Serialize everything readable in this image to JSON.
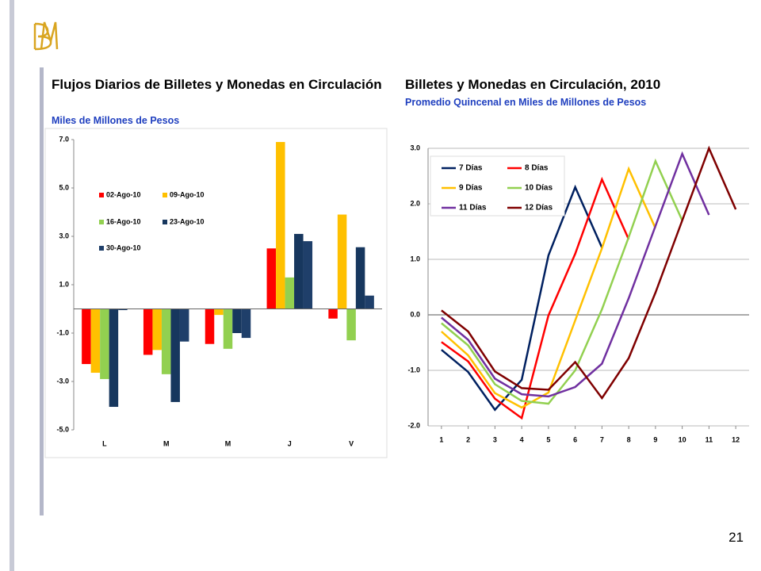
{
  "page_number": "21",
  "chart_data": [
    {
      "type": "bar",
      "title": "Flujos Diarios de Billetes y Monedas en Circulación",
      "subtitle": "Miles de Millones de Pesos",
      "categories": [
        "L",
        "M",
        "M",
        "J",
        "V"
      ],
      "series": [
        {
          "name": "02-Ago-10",
          "color": "#ff0000",
          "values": [
            -2.28,
            -1.9,
            -1.45,
            2.5,
            -0.4
          ]
        },
        {
          "name": "09-Ago-10",
          "color": "#ffc000",
          "values": [
            -2.64,
            -1.7,
            -0.25,
            6.9,
            3.9
          ]
        },
        {
          "name": "16-Ago-10",
          "color": "#92d050",
          "values": [
            -2.9,
            -2.7,
            -1.65,
            1.3,
            -1.3
          ]
        },
        {
          "name": "23-Ago-10",
          "color": "#17375e",
          "values": [
            -4.05,
            -3.85,
            -1.0,
            3.1,
            2.55
          ]
        },
        {
          "name": "30-Ago-10",
          "color": "#1f3f6a",
          "values": [
            -0.05,
            -1.35,
            -1.2,
            2.8,
            0.55
          ]
        }
      ],
      "ylim": [
        -5,
        7
      ],
      "yticks": [
        {
          "value": -5,
          "label": "-5.0"
        },
        {
          "value": -3,
          "label": "-3.0"
        },
        {
          "value": -1,
          "label": "-1.0"
        },
        {
          "value": 1,
          "label": "1.0"
        },
        {
          "value": 3,
          "label": "3.0"
        },
        {
          "value": 5,
          "label": "5.0"
        },
        {
          "value": 7,
          "label": "7.0"
        }
      ],
      "grid": false,
      "legend": "top-left"
    },
    {
      "type": "line",
      "title": "Billetes y Monedas en Circulación, 2010",
      "subtitle": "Promedio Quincenal en Miles de Millones de Pesos",
      "x": [
        1,
        2,
        3,
        4,
        5,
        6,
        7,
        8,
        9,
        10,
        11,
        12
      ],
      "series": [
        {
          "name": "7 Días",
          "color": "#002060",
          "values": [
            -0.63,
            -1.03,
            -1.71,
            -1.17,
            1.07,
            2.3,
            1.21,
            null,
            null,
            null,
            null,
            null
          ]
        },
        {
          "name": "8 Días",
          "color": "#ff0000",
          "values": [
            -0.49,
            -0.84,
            -1.51,
            -1.86,
            -0.01,
            1.1,
            2.44,
            1.36,
            null,
            null,
            null,
            null
          ]
        },
        {
          "name": "9 Días",
          "color": "#ffc000",
          "values": [
            -0.3,
            -0.73,
            -1.41,
            -1.67,
            -1.4,
            -0.1,
            1.2,
            2.63,
            1.56,
            null,
            null,
            null
          ]
        },
        {
          "name": "10 Días",
          "color": "#92d050",
          "values": [
            -0.15,
            -0.55,
            -1.25,
            -1.55,
            -1.6,
            -1.0,
            0.1,
            1.4,
            2.77,
            1.7,
            null,
            null
          ]
        },
        {
          "name": "11 Días",
          "color": "#7030a0",
          "values": [
            -0.05,
            -0.45,
            -1.15,
            -1.43,
            -1.47,
            -1.3,
            -0.88,
            0.3,
            1.6,
            2.9,
            1.8,
            null
          ]
        },
        {
          "name": "12 Días",
          "color": "#7f0000",
          "values": [
            0.08,
            -0.3,
            -1.02,
            -1.32,
            -1.35,
            -0.85,
            -1.5,
            -0.78,
            0.4,
            1.7,
            3.0,
            1.9
          ]
        }
      ],
      "xlim": [
        0.5,
        12.5
      ],
      "xticks": [
        1,
        2,
        3,
        4,
        5,
        6,
        7,
        8,
        9,
        10,
        11,
        12
      ],
      "ylim": [
        -2,
        3
      ],
      "yticks": [
        {
          "value": -2,
          "label": "-2.0"
        },
        {
          "value": -1,
          "label": "-1.0"
        },
        {
          "value": 0,
          "label": "0.0"
        },
        {
          "value": 1,
          "label": "1.0"
        },
        {
          "value": 2,
          "label": "2.0"
        },
        {
          "value": 3,
          "label": "3.0"
        }
      ],
      "grid": true,
      "legend": "top-left"
    }
  ]
}
